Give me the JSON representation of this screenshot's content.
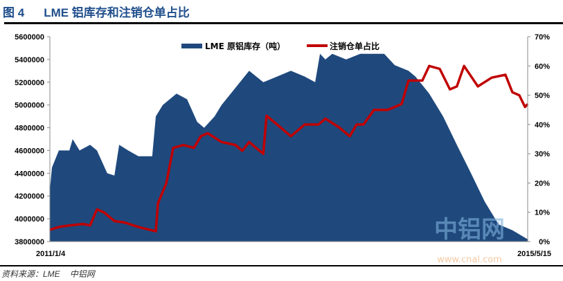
{
  "header": {
    "figure_number": "图 4",
    "title": "LME 铝库存和注销仓单占比"
  },
  "footer": {
    "source_label": "资料来源：LME",
    "source_org": "中铝网"
  },
  "watermark": {
    "logo_text": "中铝网",
    "url": "www.cnal.com"
  },
  "chart_data": {
    "type": "area+line",
    "title": "",
    "x_ticks": [
      "2011/1/4",
      "2015/5/15"
    ],
    "xlim": [
      "2011-01-04",
      "2015-05-15"
    ],
    "y_left": {
      "lim": [
        3800000,
        5600000
      ],
      "ticks": [
        "3800000",
        "4000000",
        "4200000",
        "4400000",
        "4600000",
        "4800000",
        "5000000",
        "5200000",
        "5400000",
        "5600000"
      ]
    },
    "y_right": {
      "lim": [
        0,
        70
      ],
      "ticks": [
        "0%",
        "10%",
        "20%",
        "30%",
        "40%",
        "50%",
        "60%",
        "70%"
      ]
    },
    "legend_position": "top-center",
    "grid": false,
    "series": [
      {
        "name": "LME 原铝库存（吨）",
        "type": "area",
        "axis": "left",
        "color": "#1f497d",
        "points": [
          [
            "2011-01-04",
            4250000
          ],
          [
            "2011-01-11",
            4450000
          ],
          [
            "2011-02-03",
            4600000
          ],
          [
            "2011-03-10",
            4600000
          ],
          [
            "2011-03-21",
            4700000
          ],
          [
            "2011-04-13",
            4600000
          ],
          [
            "2011-05-18",
            4650000
          ],
          [
            "2011-06-10",
            4600000
          ],
          [
            "2011-07-14",
            4400000
          ],
          [
            "2011-08-07",
            4380000
          ],
          [
            "2011-08-23",
            4650000
          ],
          [
            "2011-09-22",
            4600000
          ],
          [
            "2011-10-26",
            4550000
          ],
          [
            "2011-12-11",
            4550000
          ],
          [
            "2011-12-23",
            4900000
          ],
          [
            "2012-01-15",
            5000000
          ],
          [
            "2012-03-01",
            5100000
          ],
          [
            "2012-04-05",
            5050000
          ],
          [
            "2012-05-09",
            4850000
          ],
          [
            "2012-06-01",
            4800000
          ],
          [
            "2012-07-06",
            4900000
          ],
          [
            "2012-07-29",
            5000000
          ],
          [
            "2012-09-13",
            5150000
          ],
          [
            "2012-10-29",
            5300000
          ],
          [
            "2012-12-15",
            5200000
          ],
          [
            "2013-01-30",
            5250000
          ],
          [
            "2013-03-17",
            5300000
          ],
          [
            "2013-05-02",
            5250000
          ],
          [
            "2013-06-06",
            5200000
          ],
          [
            "2013-06-22",
            5450000
          ],
          [
            "2013-07-10",
            5400000
          ],
          [
            "2013-08-02",
            5450000
          ],
          [
            "2013-09-17",
            5400000
          ],
          [
            "2013-11-03",
            5450000
          ],
          [
            "2013-12-19",
            5450000
          ],
          [
            "2014-01-22",
            5450000
          ],
          [
            "2014-02-26",
            5350000
          ],
          [
            "2014-04-13",
            5300000
          ],
          [
            "2014-05-06",
            5250000
          ],
          [
            "2014-06-21",
            5100000
          ],
          [
            "2014-08-06",
            4900000
          ],
          [
            "2014-09-21",
            4650000
          ],
          [
            "2014-11-07",
            4400000
          ],
          [
            "2014-12-23",
            4150000
          ],
          [
            "2015-02-07",
            3950000
          ],
          [
            "2015-03-25",
            3900000
          ],
          [
            "2015-05-15",
            3820000
          ]
        ]
      },
      {
        "name": "注销仓单占比",
        "type": "line",
        "axis": "right",
        "color": "#c00000",
        "points": [
          [
            "2011-01-04",
            4
          ],
          [
            "2011-02-03",
            5
          ],
          [
            "2011-03-10",
            5.5
          ],
          [
            "2011-04-25",
            6
          ],
          [
            "2011-05-18",
            5.5
          ],
          [
            "2011-06-10",
            11
          ],
          [
            "2011-07-03",
            10
          ],
          [
            "2011-08-07",
            7
          ],
          [
            "2011-09-10",
            6.5
          ],
          [
            "2011-10-26",
            5
          ],
          [
            "2011-12-23",
            3.5
          ],
          [
            "2011-12-30",
            13
          ],
          [
            "2012-01-27",
            20
          ],
          [
            "2012-02-19",
            32
          ],
          [
            "2012-03-24",
            33
          ],
          [
            "2012-04-28",
            32
          ],
          [
            "2012-05-21",
            36
          ],
          [
            "2012-06-13",
            37
          ],
          [
            "2012-07-29",
            34
          ],
          [
            "2012-09-13",
            33
          ],
          [
            "2012-10-06",
            31
          ],
          [
            "2012-10-29",
            34
          ],
          [
            "2012-11-21",
            32
          ],
          [
            "2012-12-15",
            30
          ],
          [
            "2012-12-26",
            43
          ],
          [
            "2013-01-30",
            40
          ],
          [
            "2013-03-17",
            36
          ],
          [
            "2013-05-02",
            40
          ],
          [
            "2013-06-17",
            40
          ],
          [
            "2013-07-10",
            42
          ],
          [
            "2013-08-25",
            39
          ],
          [
            "2013-09-29",
            36
          ],
          [
            "2013-10-22",
            40
          ],
          [
            "2013-11-14",
            40
          ],
          [
            "2013-12-19",
            45
          ],
          [
            "2014-02-03",
            45
          ],
          [
            "2014-03-21",
            47
          ],
          [
            "2014-04-13",
            55
          ],
          [
            "2014-05-29",
            55
          ],
          [
            "2014-06-21",
            60
          ],
          [
            "2014-07-26",
            59
          ],
          [
            "2014-08-29",
            52
          ],
          [
            "2014-09-21",
            53
          ],
          [
            "2014-10-15",
            60
          ],
          [
            "2014-11-30",
            53
          ],
          [
            "2015-01-15",
            56
          ],
          [
            "2015-03-02",
            57
          ],
          [
            "2015-03-25",
            51
          ],
          [
            "2015-04-17",
            50
          ],
          [
            "2015-05-06",
            46
          ],
          [
            "2015-05-15",
            47
          ]
        ]
      }
    ]
  }
}
